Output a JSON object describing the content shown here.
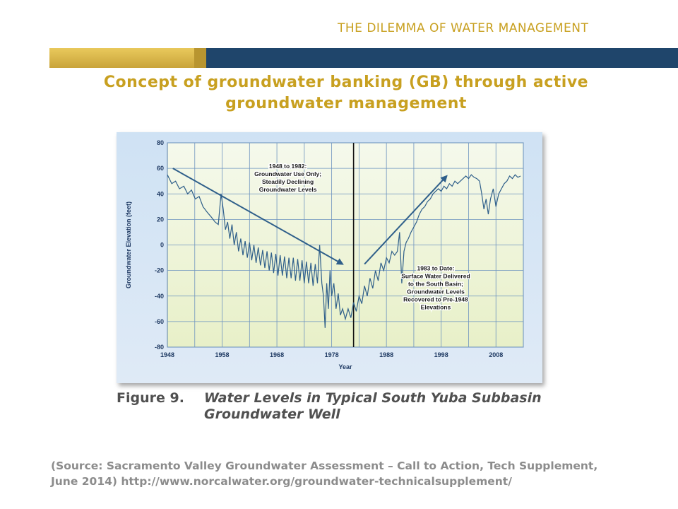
{
  "header": {
    "section_title": "THE DILEMMA OF WATER MANAGEMENT"
  },
  "title": {
    "line1": "Concept of groundwater banking (GB) through active",
    "line2": "groundwater management"
  },
  "figure": {
    "label": "Figure 9.",
    "caption": "Water Levels in Typical South Yuba Subbasin Groundwater Well"
  },
  "source": {
    "line1": "(Source: Sacramento Valley Groundwater Assessment – Call to Action, Tech Supplement,",
    "line2": "June 2014) http://www.norcalwater.org/groundwater-technicalsupplement/"
  },
  "colors": {
    "accent_gold": "#c8a020",
    "band_blue": "#1f456b",
    "series_line": "#2f5f8a",
    "arrow": "#2f5f8a"
  },
  "chart_data": {
    "type": "line",
    "title": "",
    "xlabel": "Year",
    "ylabel": "Groundwater Elevation (feet)",
    "xlim": [
      1948,
      2013
    ],
    "ylim": [
      -80,
      80
    ],
    "x_ticks": [
      1948,
      1958,
      1968,
      1978,
      1988,
      1998,
      2008
    ],
    "y_ticks": [
      80,
      60,
      40,
      20,
      0,
      -20,
      -40,
      -60,
      -80
    ],
    "grid": true,
    "series": [
      {
        "name": "",
        "points": [
          [
            1948,
            55
          ],
          [
            1948.8,
            48
          ],
          [
            1949.5,
            50
          ],
          [
            1950.2,
            44
          ],
          [
            1951,
            46
          ],
          [
            1951.7,
            40
          ],
          [
            1952.4,
            43
          ],
          [
            1953.1,
            36
          ],
          [
            1953.8,
            38
          ],
          [
            1954.5,
            30
          ],
          [
            1955.2,
            26
          ],
          [
            1956,
            22
          ],
          [
            1956.7,
            18
          ],
          [
            1957.3,
            16
          ],
          [
            1957.8,
            40
          ],
          [
            1958.2,
            28
          ],
          [
            1958.6,
            12
          ],
          [
            1959,
            18
          ],
          [
            1959.4,
            5
          ],
          [
            1959.8,
            16
          ],
          [
            1960.2,
            0
          ],
          [
            1960.6,
            10
          ],
          [
            1961,
            -5
          ],
          [
            1961.4,
            5
          ],
          [
            1961.8,
            -8
          ],
          [
            1962.2,
            3
          ],
          [
            1962.6,
            -10
          ],
          [
            1963,
            2
          ],
          [
            1963.4,
            -12
          ],
          [
            1963.8,
            0
          ],
          [
            1964.2,
            -14
          ],
          [
            1964.6,
            -2
          ],
          [
            1965,
            -16
          ],
          [
            1965.4,
            -4
          ],
          [
            1965.8,
            -18
          ],
          [
            1966.2,
            -5
          ],
          [
            1966.6,
            -20
          ],
          [
            1967,
            -6
          ],
          [
            1967.4,
            -22
          ],
          [
            1967.8,
            -7
          ],
          [
            1968.2,
            -24
          ],
          [
            1968.6,
            -8
          ],
          [
            1969,
            -24
          ],
          [
            1969.4,
            -9
          ],
          [
            1969.8,
            -26
          ],
          [
            1970.2,
            -10
          ],
          [
            1970.6,
            -26
          ],
          [
            1971,
            -10
          ],
          [
            1971.4,
            -28
          ],
          [
            1971.8,
            -11
          ],
          [
            1972.2,
            -28
          ],
          [
            1972.6,
            -12
          ],
          [
            1973,
            -30
          ],
          [
            1973.4,
            -13
          ],
          [
            1973.8,
            -30
          ],
          [
            1974.2,
            -14
          ],
          [
            1974.6,
            -32
          ],
          [
            1975,
            -15
          ],
          [
            1975.4,
            -30
          ],
          [
            1975.8,
            0
          ],
          [
            1976.2,
            -30
          ],
          [
            1976.5,
            -40
          ],
          [
            1976.8,
            -65
          ],
          [
            1977.1,
            -30
          ],
          [
            1977.4,
            -50
          ],
          [
            1977.7,
            -20
          ],
          [
            1978,
            -40
          ],
          [
            1978.4,
            -30
          ],
          [
            1978.8,
            -50
          ],
          [
            1979.2,
            -38
          ],
          [
            1979.6,
            -55
          ],
          [
            1980,
            -50
          ],
          [
            1980.5,
            -58
          ],
          [
            1981,
            -50
          ],
          [
            1981.5,
            -57
          ],
          [
            1982,
            -45
          ],
          [
            1982.5,
            -52
          ],
          [
            1983,
            -40
          ],
          [
            1983.5,
            -46
          ],
          [
            1984,
            -32
          ],
          [
            1984.5,
            -40
          ],
          [
            1985,
            -26
          ],
          [
            1985.5,
            -34
          ],
          [
            1986,
            -20
          ],
          [
            1986.5,
            -28
          ],
          [
            1987,
            -14
          ],
          [
            1987.5,
            -20
          ],
          [
            1988,
            -10
          ],
          [
            1988.5,
            -14
          ],
          [
            1989,
            -5
          ],
          [
            1989.5,
            -8
          ],
          [
            1990,
            -5
          ],
          [
            1990.4,
            10
          ],
          [
            1990.8,
            -30
          ],
          [
            1991.2,
            -5
          ],
          [
            1991.6,
            2
          ],
          [
            1992,
            5
          ],
          [
            1992.5,
            10
          ],
          [
            1993,
            14
          ],
          [
            1993.5,
            18
          ],
          [
            1994,
            24
          ],
          [
            1994.5,
            28
          ],
          [
            1995,
            30
          ],
          [
            1995.5,
            34
          ],
          [
            1996,
            36
          ],
          [
            1996.5,
            40
          ],
          [
            1997,
            42
          ],
          [
            1997.5,
            44
          ],
          [
            1998,
            42
          ],
          [
            1998.5,
            46
          ],
          [
            1999,
            44
          ],
          [
            1999.5,
            48
          ],
          [
            2000,
            46
          ],
          [
            2000.5,
            50
          ],
          [
            2001,
            48
          ],
          [
            2001.5,
            50
          ],
          [
            2002,
            52
          ],
          [
            2002.5,
            54
          ],
          [
            2003,
            52
          ],
          [
            2003.5,
            55
          ],
          [
            2004,
            53
          ],
          [
            2004.5,
            52
          ],
          [
            2005,
            50
          ],
          [
            2005.4,
            40
          ],
          [
            2005.8,
            28
          ],
          [
            2006.2,
            36
          ],
          [
            2006.6,
            24
          ],
          [
            2007,
            36
          ],
          [
            2007.5,
            44
          ],
          [
            2008,
            30
          ],
          [
            2008.5,
            40
          ],
          [
            2009,
            44
          ],
          [
            2009.5,
            48
          ],
          [
            2010,
            50
          ],
          [
            2010.5,
            54
          ],
          [
            2011,
            52
          ],
          [
            2011.5,
            55
          ],
          [
            2012,
            53
          ],
          [
            2012.5,
            54
          ]
        ]
      }
    ],
    "vertical_line_x": 1982,
    "annotations": [
      {
        "text_lines": [
          "1948 to 1982:",
          "Groundwater Use Only;",
          "Steadily Declining",
          "Groundwater Levels"
        ],
        "anchor_year": 1970,
        "anchor_value": 60
      },
      {
        "text_lines": [
          "1983 to Date:",
          "Surface Water Delivered",
          "to the South Basin;",
          "Groundwater Levels",
          "Recovered to Pre-1948",
          "Elevations"
        ],
        "anchor_year": 1997,
        "anchor_value": -20
      }
    ],
    "arrows": [
      {
        "from": [
          1949,
          60
        ],
        "to": [
          1980,
          -15
        ]
      },
      {
        "from": [
          1984,
          -15
        ],
        "to": [
          1999,
          54
        ]
      }
    ]
  }
}
